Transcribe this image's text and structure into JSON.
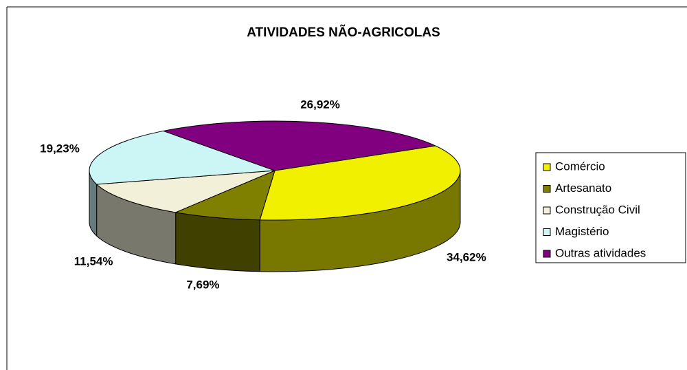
{
  "chart_data": {
    "type": "pie3d",
    "title": "ATIVIDADES NÃO-AGRICOLAS",
    "categories": [
      "Comércio",
      "Artesanato",
      "Construção Civil",
      "Magistério",
      "Outras atividades"
    ],
    "values": [
      34.62,
      7.69,
      11.54,
      19.23,
      26.92
    ],
    "value_labels": [
      "34,62%",
      "7,69%",
      "11,54%",
      "19,23%",
      "26,92%"
    ],
    "colors": [
      "#f0f000",
      "#808000",
      "#f2f0d8",
      "#ccf5f5",
      "#800080"
    ],
    "legend": "right"
  }
}
